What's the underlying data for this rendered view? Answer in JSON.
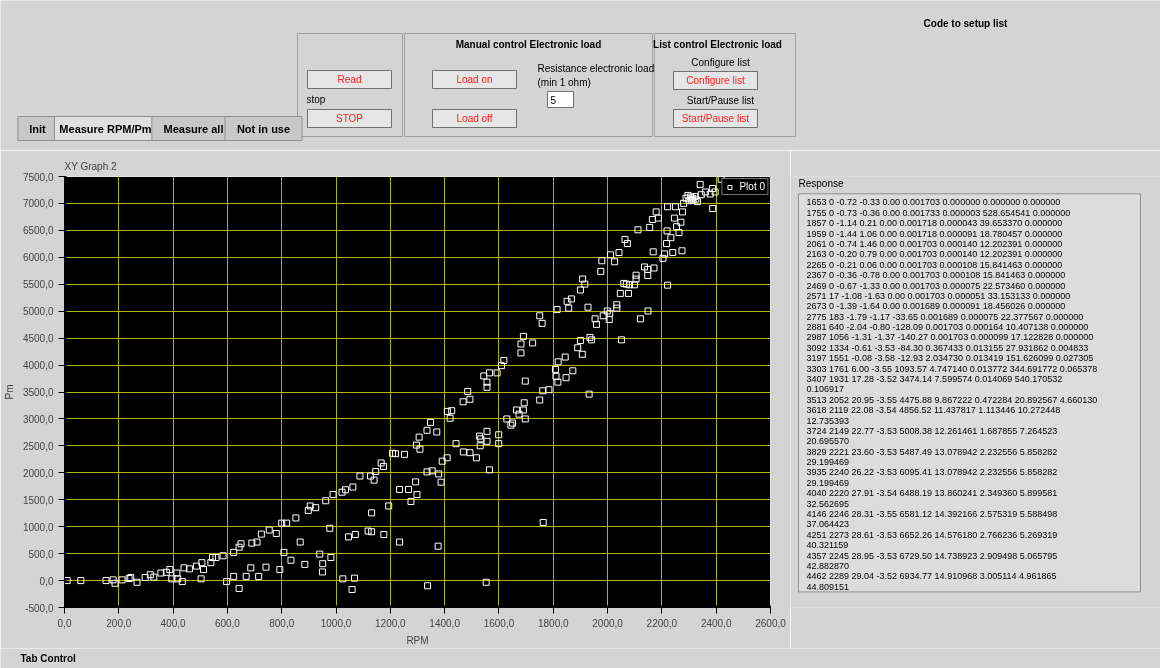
{
  "chart_data": [
    {
      "type": "other",
      "annotations": [
        "Manual control Electronic load",
        "List control Electronic load",
        "Code to setup list",
        "Read",
        "stop",
        "STOP",
        "Load on",
        "Load off",
        "Resistance electronic load",
        "(min 1 ohm)",
        "5",
        "Configure list",
        "Configure list",
        "Start/Pause list",
        "Start/Pause list",
        "Init",
        "Measure RPM/Pm",
        "Measure all",
        "Not in use"
      ]
    },
    {
      "type": "scatter",
      "title": "XY Graph 2",
      "xlabel": "RPM",
      "ylabel": "Pm",
      "marker": "square",
      "grid": true,
      "legend": "top right",
      "xlim": [
        0,
        2600
      ],
      "ylim": [
        -500,
        7500
      ],
      "xticks": [
        {
          "value": 0,
          "label": "0,0"
        },
        {
          "value": 200,
          "label": "200,0"
        },
        {
          "value": 400,
          "label": "400,0"
        },
        {
          "value": 600,
          "label": "600,0"
        },
        {
          "value": 800,
          "label": "800,0"
        },
        {
          "value": 1000,
          "label": "1000,0"
        },
        {
          "value": 1200,
          "label": "1200,0"
        },
        {
          "value": 1400,
          "label": "1400,0"
        },
        {
          "value": 1600,
          "label": "1600,0"
        },
        {
          "value": 1800,
          "label": "1800,0"
        },
        {
          "value": 2000,
          "label": "2000,0"
        },
        {
          "value": 2200,
          "label": "2200,0"
        },
        {
          "value": 2400,
          "label": "2400,0"
        },
        {
          "value": 2600,
          "label": "2600,0"
        }
      ],
      "yticks": [
        {
          "value": -500,
          "label": "-500,0"
        },
        {
          "value": 0,
          "label": "0,0"
        },
        {
          "value": 500,
          "label": "500,0"
        },
        {
          "value": 1000,
          "label": "1000,0"
        },
        {
          "value": 1500,
          "label": "1500,0"
        },
        {
          "value": 2000,
          "label": "2000,0"
        },
        {
          "value": 2500,
          "label": "2500,0"
        },
        {
          "value": 3000,
          "label": "3000,0"
        },
        {
          "value": 3500,
          "label": "3500,0"
        },
        {
          "value": 4000,
          "label": "4000,0"
        },
        {
          "value": 4500,
          "label": "4500,0"
        },
        {
          "value": 5000,
          "label": "5000,0"
        },
        {
          "value": 5500,
          "label": "5500,0"
        },
        {
          "value": 6000,
          "label": "6000,0"
        },
        {
          "value": 6500,
          "label": "6500,0"
        },
        {
          "value": 7000,
          "label": "7000,0"
        },
        {
          "value": 7500,
          "label": "7500,0"
        }
      ],
      "series": [
        {
          "name": "Plot 0",
          "color": "#ffffff",
          "x": [
            10,
            60,
            153,
            179,
            186,
            212,
            238,
            244,
            267,
            297,
            316,
            329,
            355,
            375,
            388,
            395,
            414,
            417,
            434,
            440,
            460,
            486,
            506,
            503,
            512,
            539,
            545,
            558,
            584,
            597,
            623,
            623,
            643,
            643,
            650,
            669,
            686,
            690,
            709,
            715,
            725,
            742,
            754,
            780,
            793,
            800,
            808,
            818,
            834,
            852,
            868,
            885,
            898,
            905,
            925,
            940,
            950,
            951,
            962,
            977,
            981,
            989,
            1022,
            1025,
            1035,
            1046,
            1059,
            1062,
            1068,
            1071,
            1088,
            1118,
            1127,
            1131,
            1131,
            1140,
            1146,
            1166,
            1175,
            1176,
            1194,
            1208,
            1219,
            1234,
            1234,
            1252,
            1267,
            1276,
            1293,
            1296,
            1298,
            1306,
            1309,
            1335,
            1335,
            1337,
            1348,
            1354,
            1371,
            1378,
            1376,
            1387,
            1391,
            1409,
            1410,
            1420,
            1426,
            1442,
            1468,
            1469,
            1485,
            1493,
            1493,
            1517,
            1528,
            1533,
            1531,
            1544,
            1553,
            1556,
            1556,
            1556,
            1556,
            1565,
            1565,
            1593,
            1599,
            1599,
            1609,
            1618,
            1629,
            1644,
            1650,
            1665,
            1674,
            1681,
            1681,
            1690,
            1693,
            1690,
            1697,
            1697,
            1724,
            1750,
            1750,
            1759,
            1761,
            1763,
            1784,
            1808,
            1810,
            1814,
            1817,
            1818,
            1844,
            1847,
            1851,
            1857,
            1867,
            1872,
            1890,
            1900,
            1900,
            1907,
            1908,
            1916,
            1928,
            1932,
            1935,
            1941,
            1954,
            1959,
            1975,
            1979,
            1984,
            1999,
            2006,
            2008,
            2011,
            2026,
            2034,
            2034,
            2042,
            2051,
            2047,
            2060,
            2069,
            2073,
            2064,
            2077,
            2081,
            2099,
            2105,
            2105,
            2112,
            2121,
            2136,
            2148,
            2148,
            2149,
            2155,
            2165,
            2168,
            2171,
            2179,
            2187,
            2204,
            2210,
            2217,
            2219,
            2221,
            2221,
            2233,
            2240,
            2246,
            2250,
            2254,
            2263,
            2270,
            2274,
            2276,
            2280,
            2289,
            2296,
            2300,
            2305,
            2308,
            2312,
            2315,
            2321,
            2325,
            2331,
            2341,
            2345,
            2361,
            2378,
            2387,
            2387,
            2396,
            2418
          ],
          "values": [
            0,
            0,
            0,
            13,
            -51,
            13,
            38,
            57,
            -32,
            57,
            108,
            64,
            140,
            153,
            204,
            32,
            140,
            32,
            -19,
            236,
            217,
            268,
            332,
            32,
            204,
            332,
            428,
            428,
            460,
            -19,
            523,
            77,
            619,
            -147,
            683,
            77,
            236,
            696,
            715,
            77,
            862,
            249,
            938,
            874,
            204,
            1066,
            523,
            1066,
            377,
            1162,
            715,
            300,
            1302,
            1385,
            1353,
            491,
            160,
            313,
            1481,
            970,
            428,
            1596,
            1640,
            32,
            1685,
            811,
            -166,
            1736,
            45,
            855,
            1940,
            919,
            1940,
            1257,
            906,
            1864,
            2023,
            2183,
            2119,
            855,
            1385,
            2362,
            2355,
            1691,
            715,
            2342,
            1691,
            1468,
            1832,
            2515,
            1596,
            2662,
            2438,
            2789,
            2017,
            -96,
            2936,
            2036,
            2758,
            1979,
            638,
            1826,
            2215,
            2279,
            3140,
            3013,
            3153,
            2541,
            3319,
            2387,
            3511,
            2374,
            3364,
            2279,
            2681,
            2630,
            2502,
            3798,
            -32,
            3683,
            3587,
            2770,
            2585,
            2055,
            3855,
            3855,
            2706,
            2541,
            3989,
            4085,
            3000,
            2885,
            2923,
            3166,
            3089,
            4226,
            4392,
            4532,
            3300,
            3166,
            3702,
            3000,
            4411,
            4915,
            3351,
            4774,
            3523,
            1079,
            3543,
            3919,
            3791,
            5030,
            3683,
            4060,
            4149,
            3766,
            5183,
            5056,
            5228,
            3894,
            4322,
            4456,
            5393,
            4200,
            5597,
            5502,
            5074,
            3460,
            4513,
            4468,
            4858,
            4755,
            5738,
            5936,
            4915,
            5004,
            4845,
            4960,
            6045,
            5917,
            5119,
            5056,
            6089,
            4468,
            5330,
            5515,
            5502,
            6255,
            6332,
            5330,
            5490,
            5490,
            5668,
            5597,
            6511,
            4858,
            5821,
            5777,
            5662,
            5004,
            6555,
            6702,
            6102,
            5802,
            6843,
            6728,
            5981,
            6064,
            6255,
            6491,
            5483,
            6938,
            6364,
            6089,
            6728,
            6938,
            6568,
            6460,
            6651,
            6121,
            6843,
            7002,
            7098,
            7149,
            7050,
            7120,
            7066,
            7100,
            7060,
            7130,
            7080,
            7034,
            7353,
            7162,
            7213,
            7175,
            6906,
            7277,
            7213,
            7449
          ]
        }
      ]
    },
    {
      "type": "other",
      "title": "Response",
      "annotations": [
        "1653 0 -0.72 -0.33 0.00  0.001703 0.000000 0.000000 0.000000",
        "1755 0 -0.73 -0.36 0.00  0.001733 0.000003 528.654541 0.000000",
        "1857 0 -1.14 0.21 0.00  0.001718 0.000043 39.653370 0.000000",
        "1959 0 -1.44 1.06 0.00  0.001718 0.000091 18.780457 0.000000",
        "2061 0 -0.74 1.46 0.00  0.001703 0.000140 12.202391 0.000000",
        "2163 0 -0.20 0.79 0.00  0.001703 0.000140 12.202391 0.000000",
        "2265 0 -0.21 0.06 0.00  0.001703 0.000108 15.841463 0.000000",
        "2367 0 -0.36 -0.78 0.00  0.001703 0.000108 15.841463 0.000000",
        "2469 0 -0.67 -1.33 0.00  0.001703 0.000075 22.573460 0.000000",
        "2571 17 -1.08 -1.63 0.00  0.001703 0.000051 33.153133 0.000000",
        "2673 0 -1.39 -1.64 0.00  0.001689 0.000091 18.456026 0.000000",
        "2775 183 -1.79 -1.17 -33.65  0.001689 0.000075 22.377567 0.000000",
        "2881 640 -2.04 -0.80 -128.09  0.001703 0.000164 10.407138 0.000000",
        "2987 1056 -1.31 -1.37 -140.27  0.001703 0.000099 17.122828 0.000000",
        "3092 1334 -0.61 -3.53 -84.30  0.367433 0.013155 27.931862 0.004833",
        "3197 1551 -0.08 -3.58 -12.93  2.034730 0.013419 151.626099 0.027305",
        "3303 1761 6.00 -3.55 1093.57  4.747140 0.013772 344.691772 0.065378",
        "3407 1931 17.28 -3.52 3474.14  7.599574 0.014069 540.170532",
        "0.106917",
        "3513 2052 20.95 -3.55 4475.88  9.867222 0.472284 20.892567 4.660130",
        "3618 2119 22.08 -3.54 4856.52  11.437817 1.113446 10.272448",
        "12.735393",
        "3724 2149 22.77 -3.53 5008.38  12.261461 1.687855 7.264523",
        "20.695570",
        "3829 2221 23.60 -3.53 5487.49  13.078942 2.232556 5.858282",
        "29.199469",
        "3935 2240 26.22 -3.53 6095.41  13.078942 2.232556 5.858282",
        "29.199469",
        "4040 2220 27.91 -3.54 6488.19  13.860241 2.349360 5.899581",
        "32.562695",
        "4146 2246 28.31 -3.55 6581.12  14.392166 2.575319 5.588498",
        "37.064423",
        "4251 2273 28.61 -3.53 6652.26  14.576180 2.766236 5.269319",
        "40.321159",
        "4357 2245 28.95 -3.53 6729.50  14.738923 2.909498 5.065795",
        "42.882870",
        "4462 2289 29.04 -3.52 6934.77  14.910968 3.005114 4.961865",
        "44.809151"
      ]
    },
    {
      "type": "other",
      "annotations": [
        "Tab Control"
      ]
    }
  ]
}
